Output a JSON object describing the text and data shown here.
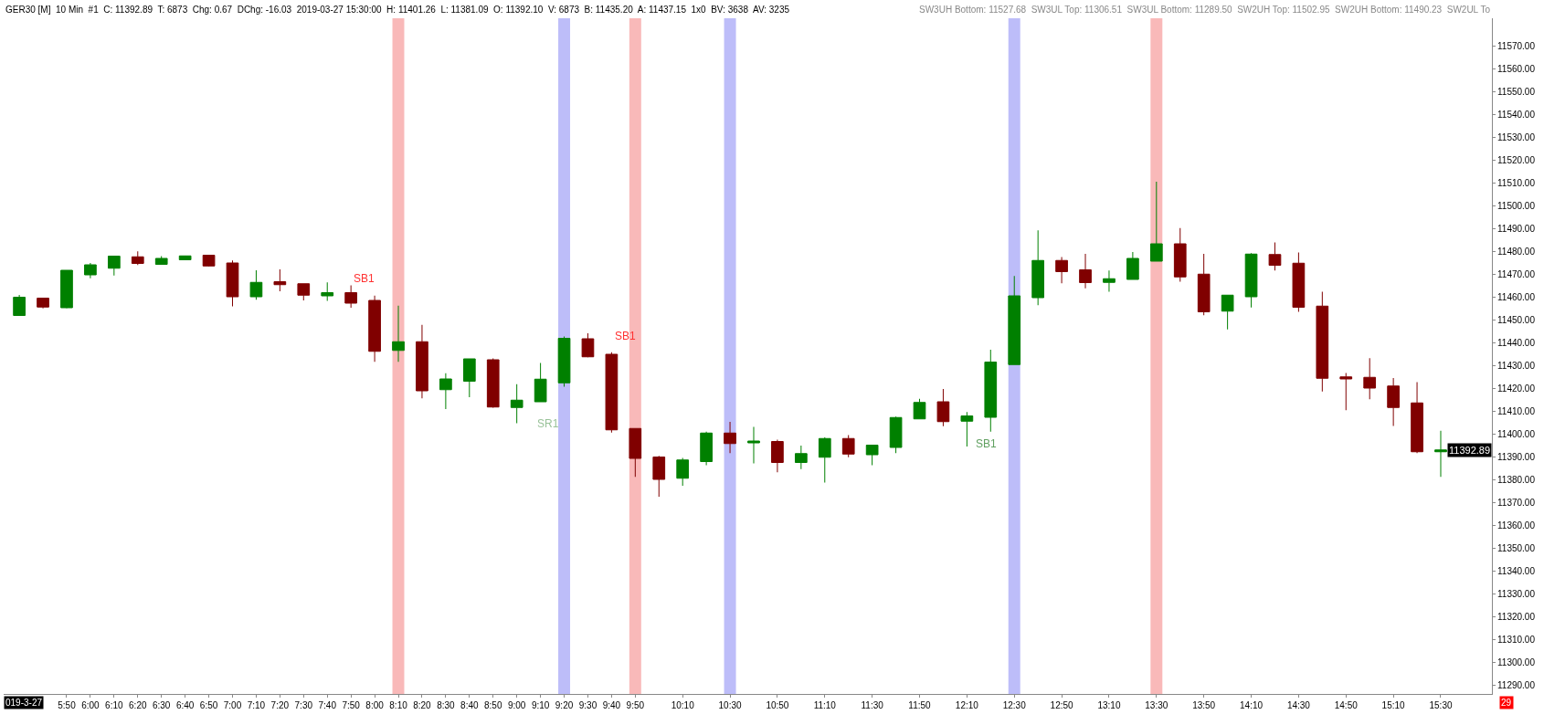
{
  "chart_data": {
    "type": "candlestick",
    "x": [
      5.5,
      5.6667,
      5.8333,
      6.0,
      6.1667,
      6.3333,
      6.5,
      6.6667,
      6.8333,
      7.0,
      7.1667,
      7.3333,
      7.5,
      7.6667,
      7.8333,
      8.0,
      8.1667,
      8.3333,
      8.5,
      8.6667,
      8.8333,
      9.0,
      9.1667,
      9.3333,
      9.5,
      9.6667,
      9.8333,
      10.0,
      10.1667,
      10.3333,
      10.5,
      10.6667,
      10.8333,
      11.0,
      11.1667,
      11.3333,
      11.5,
      11.6667,
      11.8333,
      12.0,
      12.1667,
      12.3333,
      12.5,
      12.6667,
      12.8333,
      13.0,
      13.1667,
      13.3333,
      13.5,
      13.6667,
      13.8333,
      14.0,
      14.1667,
      14.3333,
      14.5,
      14.6667,
      14.8333,
      15.0,
      15.1667,
      15.3333,
      15.5
    ],
    "ohlc": [
      [
        11451.8,
        11460.8,
        11451.8,
        11459.8
      ],
      [
        11459.4,
        11459.4,
        11454.9,
        11455.5
      ],
      [
        11455.2,
        11471.6,
        11455.0,
        11471.6
      ],
      [
        11469.6,
        11474.8,
        11468.1,
        11474.0
      ],
      [
        11472.5,
        11478.0,
        11469.3,
        11477.8
      ],
      [
        11477.5,
        11479.9,
        11473.9,
        11474.6
      ],
      [
        11474.2,
        11477.8,
        11474.2,
        11476.8
      ],
      [
        11476.2,
        11478.0,
        11476.0,
        11477.9
      ],
      [
        11478.2,
        11478.2,
        11473.3,
        11473.5
      ],
      [
        11474.8,
        11475.9,
        11455.8,
        11460.0
      ],
      [
        11460.0,
        11471.6,
        11458.7,
        11466.3
      ],
      [
        11466.6,
        11472.0,
        11462.4,
        11465.3
      ],
      [
        11465.7,
        11465.7,
        11458.4,
        11460.7
      ],
      [
        11460.4,
        11466.3,
        11458.2,
        11461.8
      ],
      [
        11461.8,
        11465.0,
        11455.2,
        11457.2
      ],
      [
        11458.4,
        11460.5,
        11431.5,
        11436.1
      ],
      [
        11436.5,
        11456.1,
        11431.5,
        11440.3
      ],
      [
        11440.3,
        11447.7,
        11415.5,
        11418.8
      ],
      [
        11419.3,
        11426.5,
        11410.8,
        11424.0
      ],
      [
        11423.0,
        11432.8,
        11416.0,
        11432.8
      ],
      [
        11432.4,
        11433.0,
        11411.4,
        11411.7
      ],
      [
        11411.5,
        11421.7,
        11404.6,
        11414.7
      ],
      [
        11414.0,
        11431.0,
        11414.0,
        11423.9
      ],
      [
        11422.3,
        11442.6,
        11420.6,
        11441.8
      ],
      [
        11441.6,
        11444.0,
        11433.5,
        11433.7
      ],
      [
        11434.8,
        11435.7,
        11400.5,
        11401.7
      ],
      [
        11402.3,
        11402.3,
        11381.1,
        11389.2
      ],
      [
        11389.8,
        11390.3,
        11372.4,
        11380.0
      ],
      [
        11380.5,
        11389.4,
        11377.2,
        11388.5
      ],
      [
        11387.8,
        11400.9,
        11386.2,
        11400.3
      ],
      [
        11400.3,
        11405.2,
        11391.5,
        11395.7
      ],
      [
        11396.0,
        11403.0,
        11387.0,
        11396.8
      ],
      [
        11396.6,
        11397.4,
        11383.1,
        11387.4
      ],
      [
        11387.4,
        11394.8,
        11384.5,
        11391.3
      ],
      [
        11389.7,
        11398.4,
        11378.6,
        11397.9
      ],
      [
        11397.9,
        11399.4,
        11389.7,
        11391.1
      ],
      [
        11390.8,
        11395.0,
        11386.2,
        11395.0
      ],
      [
        11394.0,
        11407.5,
        11391.5,
        11407.1
      ],
      [
        11406.5,
        11415.3,
        11406.5,
        11413.7
      ],
      [
        11414.0,
        11419.6,
        11403.3,
        11405.3
      ],
      [
        11405.5,
        11409.5,
        11394.4,
        11407.8
      ],
      [
        11407.2,
        11436.8,
        11400.9,
        11431.4
      ],
      [
        11430.3,
        11469.1,
        11430.3,
        11460.4
      ],
      [
        11459.6,
        11489.1,
        11456.3,
        11475.9
      ],
      [
        11475.9,
        11477.4,
        11465.9,
        11471.0
      ],
      [
        11471.8,
        11478.8,
        11463.7,
        11466.2
      ],
      [
        11466.3,
        11471.5,
        11462.2,
        11467.9
      ],
      [
        11467.6,
        11479.6,
        11467.6,
        11476.8
      ],
      [
        11475.6,
        11510.4,
        11475.6,
        11483.2
      ],
      [
        11483.2,
        11490.1,
        11466.6,
        11468.7
      ],
      [
        11469.9,
        11478.8,
        11451.9,
        11453.4
      ],
      [
        11453.7,
        11460.7,
        11445.7,
        11460.7
      ],
      [
        11460.0,
        11479.1,
        11455.3,
        11478.7
      ],
      [
        11478.5,
        11483.8,
        11471.5,
        11473.8
      ],
      [
        11474.7,
        11479.4,
        11453.4,
        11455.4
      ],
      [
        11455.9,
        11462.2,
        11418.5,
        11424.3
      ],
      [
        11424.9,
        11426.6,
        11410.3,
        11424.0
      ],
      [
        11424.7,
        11433.1,
        11415.1,
        11420.0
      ],
      [
        11420.9,
        11424.4,
        11403.4,
        11411.5
      ],
      [
        11413.5,
        11422.6,
        11391.5,
        11392.1
      ],
      [
        11392.1,
        11401.3,
        11381.1,
        11392.9
      ]
    ],
    "colors": [
      "#008000",
      "#800000",
      "#008000",
      "#008000",
      "#008000",
      "#800000",
      "#008000",
      "#008000",
      "#800000",
      "#800000",
      "#008000",
      "#800000",
      "#800000",
      "#008000",
      "#800000",
      "#800000",
      "#008000",
      "#800000",
      "#008000",
      "#008000",
      "#800000",
      "#008000",
      "#008000",
      "#008000",
      "#800000",
      "#800000",
      "#800000",
      "#800000",
      "#008000",
      "#008000",
      "#800000",
      "#008000",
      "#800000",
      "#008000",
      "#008000",
      "#800000",
      "#008000",
      "#008000",
      "#008000",
      "#800000",
      "#008000",
      "#008000",
      "#008000",
      "#008000",
      "#800000",
      "#800000",
      "#008000",
      "#008000",
      "#008000",
      "#800000",
      "#800000",
      "#008000",
      "#008000",
      "#800000",
      "#800000",
      "#800000",
      "#800000",
      "#800000",
      "#800000",
      "#800000",
      "#008000"
    ],
    "xlim": [
      5.39,
      15.86
    ],
    "xticks": [
      {
        "value": 5.8333,
        "label": "5:50"
      },
      {
        "value": 6.0,
        "label": "6:00"
      },
      {
        "value": 6.1667,
        "label": "6:10"
      },
      {
        "value": 6.3333,
        "label": "6:20"
      },
      {
        "value": 6.5,
        "label": "6:30"
      },
      {
        "value": 6.6667,
        "label": "6:40"
      },
      {
        "value": 6.8333,
        "label": "6:50"
      },
      {
        "value": 7.0,
        "label": "7:00"
      },
      {
        "value": 7.1667,
        "label": "7:10"
      },
      {
        "value": 7.3333,
        "label": "7:20"
      },
      {
        "value": 7.5,
        "label": "7:30"
      },
      {
        "value": 7.6667,
        "label": "7:40"
      },
      {
        "value": 7.8333,
        "label": "7:50"
      },
      {
        "value": 8.0,
        "label": "8:00"
      },
      {
        "value": 8.1667,
        "label": "8:10"
      },
      {
        "value": 8.3333,
        "label": "8:20"
      },
      {
        "value": 8.5,
        "label": "8:30"
      },
      {
        "value": 8.6667,
        "label": "8:40"
      },
      {
        "value": 8.8333,
        "label": "8:50"
      },
      {
        "value": 9.0,
        "label": "9:00"
      },
      {
        "value": 9.1667,
        "label": "9:10"
      },
      {
        "value": 9.3333,
        "label": "9:20"
      },
      {
        "value": 9.5,
        "label": "9:30"
      },
      {
        "value": 9.6667,
        "label": "9:40"
      },
      {
        "value": 9.8333,
        "label": "9:50"
      },
      {
        "value": 10.1667,
        "label": "10:10"
      },
      {
        "value": 10.5,
        "label": "10:30"
      },
      {
        "value": 10.8333,
        "label": "10:50"
      },
      {
        "value": 11.1667,
        "label": "11:10"
      },
      {
        "value": 11.5,
        "label": "11:30"
      },
      {
        "value": 11.8333,
        "label": "11:50"
      },
      {
        "value": 12.1667,
        "label": "12:10"
      },
      {
        "value": 12.5,
        "label": "12:30"
      },
      {
        "value": 12.8333,
        "label": "12:50"
      },
      {
        "value": 13.1667,
        "label": "13:10"
      },
      {
        "value": 13.5,
        "label": "13:30"
      },
      {
        "value": 13.8333,
        "label": "13:50"
      },
      {
        "value": 14.1667,
        "label": "14:10"
      },
      {
        "value": 14.5,
        "label": "14:30"
      },
      {
        "value": 14.8333,
        "label": "14:50"
      },
      {
        "value": 15.1667,
        "label": "15:10"
      },
      {
        "value": 15.5,
        "label": "15:30"
      }
    ],
    "ylim": [
      11286,
      11582
    ],
    "yticks": [
      {
        "value": 11290,
        "label": "11290.00"
      },
      {
        "value": 11300,
        "label": "11300.00"
      },
      {
        "value": 11310,
        "label": "11310.00"
      },
      {
        "value": 11320,
        "label": "11320.00"
      },
      {
        "value": 11330,
        "label": "11330.00"
      },
      {
        "value": 11340,
        "label": "11340.00"
      },
      {
        "value": 11350,
        "label": "11350.00"
      },
      {
        "value": 11360,
        "label": "11360.00"
      },
      {
        "value": 11370,
        "label": "11370.00"
      },
      {
        "value": 11380,
        "label": "11380.00"
      },
      {
        "value": 11390,
        "label": "11390.00"
      },
      {
        "value": 11400,
        "label": "11400.00"
      },
      {
        "value": 11410,
        "label": "11410.00"
      },
      {
        "value": 11420,
        "label": "11420.00"
      },
      {
        "value": 11430,
        "label": "11430.00"
      },
      {
        "value": 11440,
        "label": "11440.00"
      },
      {
        "value": 11450,
        "label": "11450.00"
      },
      {
        "value": 11460,
        "label": "11460.00"
      },
      {
        "value": 11470,
        "label": "11470.00"
      },
      {
        "value": 11480,
        "label": "11480.00"
      },
      {
        "value": 11490,
        "label": "11490.00"
      },
      {
        "value": 11500,
        "label": "11500.00"
      },
      {
        "value": 11510,
        "label": "11510.00"
      },
      {
        "value": 11520,
        "label": "11520.00"
      },
      {
        "value": 11530,
        "label": "11530.00"
      },
      {
        "value": 11540,
        "label": "11540.00"
      },
      {
        "value": 11550,
        "label": "11550.00"
      },
      {
        "value": 11560,
        "label": "11560.00"
      },
      {
        "value": 11570,
        "label": "11570.00"
      }
    ],
    "bands": [
      {
        "axis": "x",
        "from": 8.125,
        "to": 8.2083,
        "color": "#f9b9b9"
      },
      {
        "axis": "x",
        "from": 9.2917,
        "to": 9.375,
        "color": "#bdbdf9"
      },
      {
        "axis": "x",
        "from": 9.7917,
        "to": 9.875,
        "color": "#f9b9b9"
      },
      {
        "axis": "x",
        "from": 10.4583,
        "to": 10.5417,
        "color": "#bdbdf9"
      },
      {
        "axis": "x",
        "from": 12.4583,
        "to": 12.5417,
        "color": "#bdbdf9"
      },
      {
        "axis": "x",
        "from": 13.4583,
        "to": 13.5417,
        "color": "#f9b9b9"
      }
    ],
    "annotations": [
      "GER30 [M]  10 Min  #1  C: 11392.89  T: 6873  Chg: 0.67  DChg: -16.03  2019-03-27 15:30:00  H: 11401.26  L: 11381.09  O: 11392.10  V: 6873  B: 11435.20  A: 11437.15  1x0  BV: 3638  AV: 3235",
      "SW3UH Bottom: 11527.68  SW3UL Top: 11306.51  SW3UL Bottom: 11289.50  SW2UH Top: 11502.95  SW2UH Bottom: 11490.23  SW2UL To",
      "019-3-27",
      "29",
      "SB1",
      "SR1",
      "SB1",
      "SB1",
      "11392.89"
    ],
    "grid": false
  }
}
